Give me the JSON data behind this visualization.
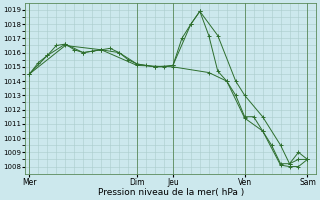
{
  "title": "",
  "xlabel": "Pression niveau de la mer( hPa )",
  "ylabel": "",
  "bg_color": "#cce8ed",
  "grid_color_major": "#aacccc",
  "grid_color_minor": "#aacccc",
  "line_color": "#2d6e2d",
  "ylim": [
    1007.5,
    1019.5
  ],
  "yticks": [
    1008,
    1009,
    1010,
    1011,
    1012,
    1013,
    1014,
    1015,
    1016,
    1017,
    1018,
    1019
  ],
  "day_labels": [
    "Mer",
    "",
    "Dim",
    "Jeu",
    "",
    "Ven",
    "",
    "Sam"
  ],
  "day_positions": [
    0,
    6,
    12,
    16,
    20,
    24,
    28,
    31
  ],
  "vline_positions": [
    0,
    12,
    16,
    24,
    31
  ],
  "series1": {
    "x": [
      0,
      1,
      2,
      3,
      4,
      5,
      6,
      7,
      8,
      9,
      10,
      11,
      12,
      13,
      14,
      15,
      16,
      17,
      18,
      19,
      20,
      21,
      22,
      23,
      24,
      25,
      26,
      27,
      28,
      29,
      30,
      31
    ],
    "y": [
      1014.5,
      1015.3,
      1015.8,
      1016.5,
      1016.6,
      1016.2,
      1016.0,
      1016.1,
      1016.2,
      1016.3,
      1016.0,
      1015.5,
      1015.2,
      1015.1,
      1015.0,
      1015.0,
      1015.1,
      1017.0,
      1018.0,
      1018.9,
      1017.2,
      1014.7,
      1014.0,
      1013.0,
      1011.5,
      1011.5,
      1010.5,
      1009.5,
      1008.2,
      1008.2,
      1009.0,
      1008.5
    ]
  },
  "series2": {
    "x": [
      0,
      2,
      4,
      6,
      8,
      10,
      12,
      14,
      16,
      18,
      19,
      21,
      23,
      24,
      26,
      28,
      29,
      30,
      31
    ],
    "y": [
      1014.5,
      1015.8,
      1016.6,
      1016.0,
      1016.2,
      1016.0,
      1015.2,
      1015.0,
      1015.1,
      1018.0,
      1018.9,
      1017.2,
      1014.0,
      1013.0,
      1011.5,
      1009.5,
      1008.2,
      1008.5,
      1008.5
    ]
  },
  "series3": {
    "x": [
      0,
      4,
      8,
      12,
      16,
      20,
      22,
      24,
      26,
      28,
      29,
      30,
      31
    ],
    "y": [
      1014.5,
      1016.5,
      1016.2,
      1015.1,
      1015.0,
      1014.6,
      1014.0,
      1011.4,
      1010.5,
      1008.1,
      1008.0,
      1008.0,
      1008.5
    ]
  }
}
